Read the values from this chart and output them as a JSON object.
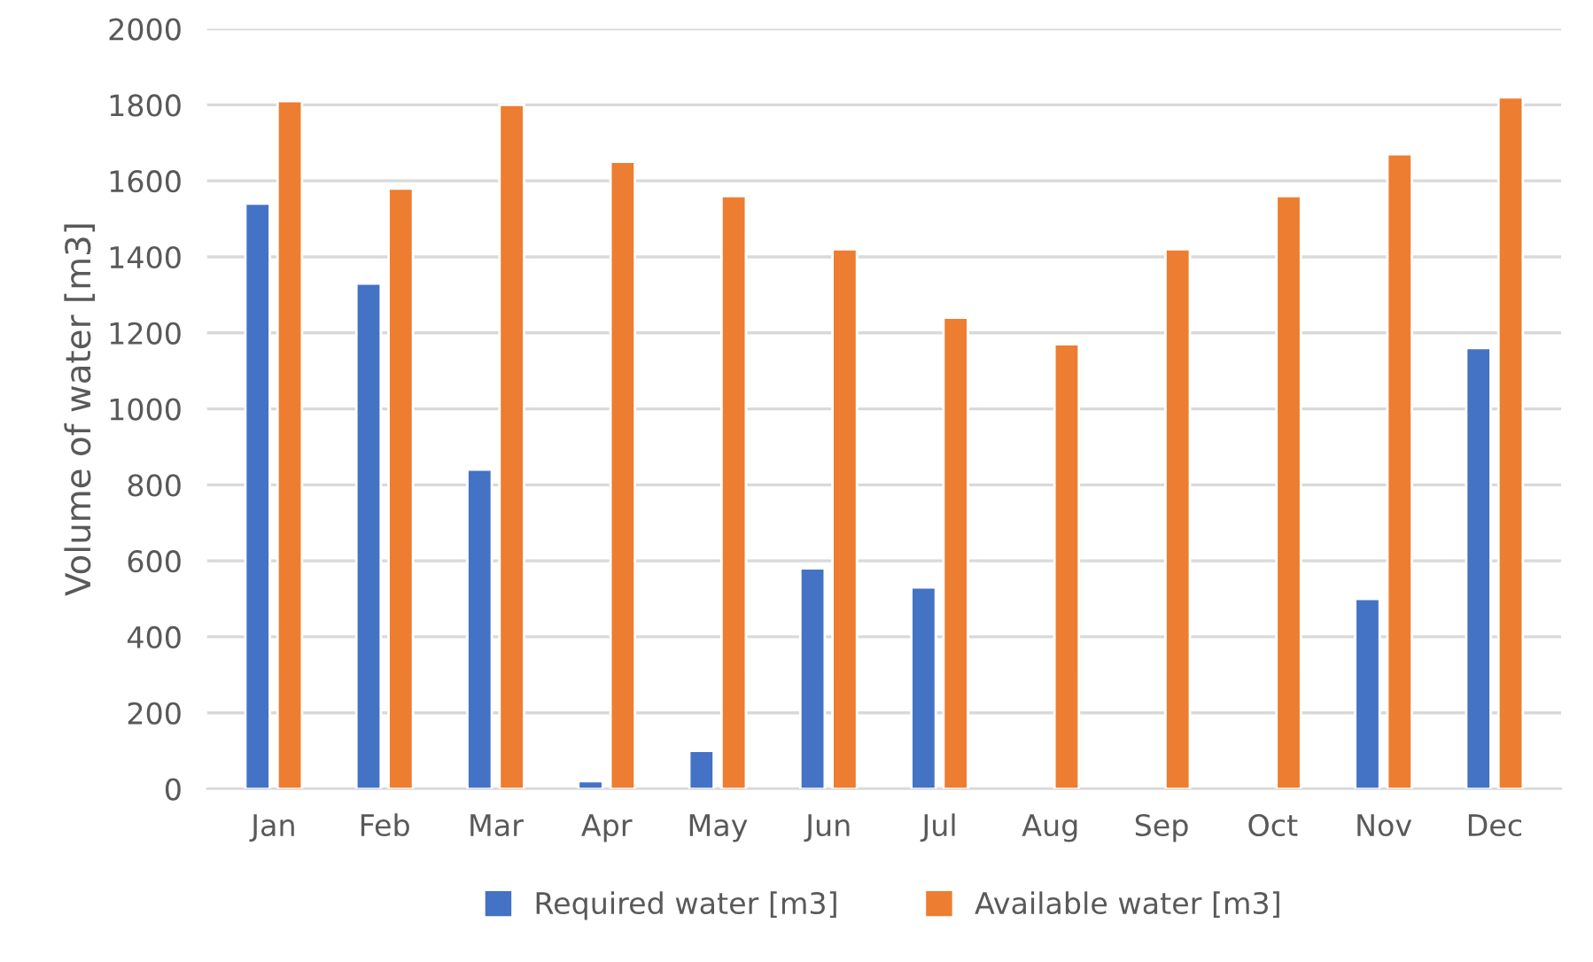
{
  "chart_data": {
    "type": "bar",
    "ylabel": "Volume of water [m3]",
    "categories": [
      "Jan",
      "Feb",
      "Mar",
      "Apr",
      "May",
      "Jun",
      "Jul",
      "Aug",
      "Sep",
      "Oct",
      "Nov",
      "Dec"
    ],
    "series": [
      {
        "name": "Required water [m3]",
        "color": "#4472c4",
        "values": [
          1540,
          1330,
          840,
          20,
          100,
          580,
          530,
          null,
          null,
          null,
          500,
          1160
        ]
      },
      {
        "name": "Available water [m3]",
        "color": "#ed7d31",
        "values": [
          1810,
          1580,
          1800,
          1650,
          1560,
          1420,
          1240,
          1170,
          1420,
          1560,
          1670,
          1820
        ]
      }
    ],
    "ylim": [
      0,
      2000
    ],
    "yticks": [
      0,
      200,
      400,
      600,
      800,
      1000,
      1200,
      1400,
      1600,
      1800,
      2000
    ],
    "grid": "y",
    "legend": "bottom"
  }
}
